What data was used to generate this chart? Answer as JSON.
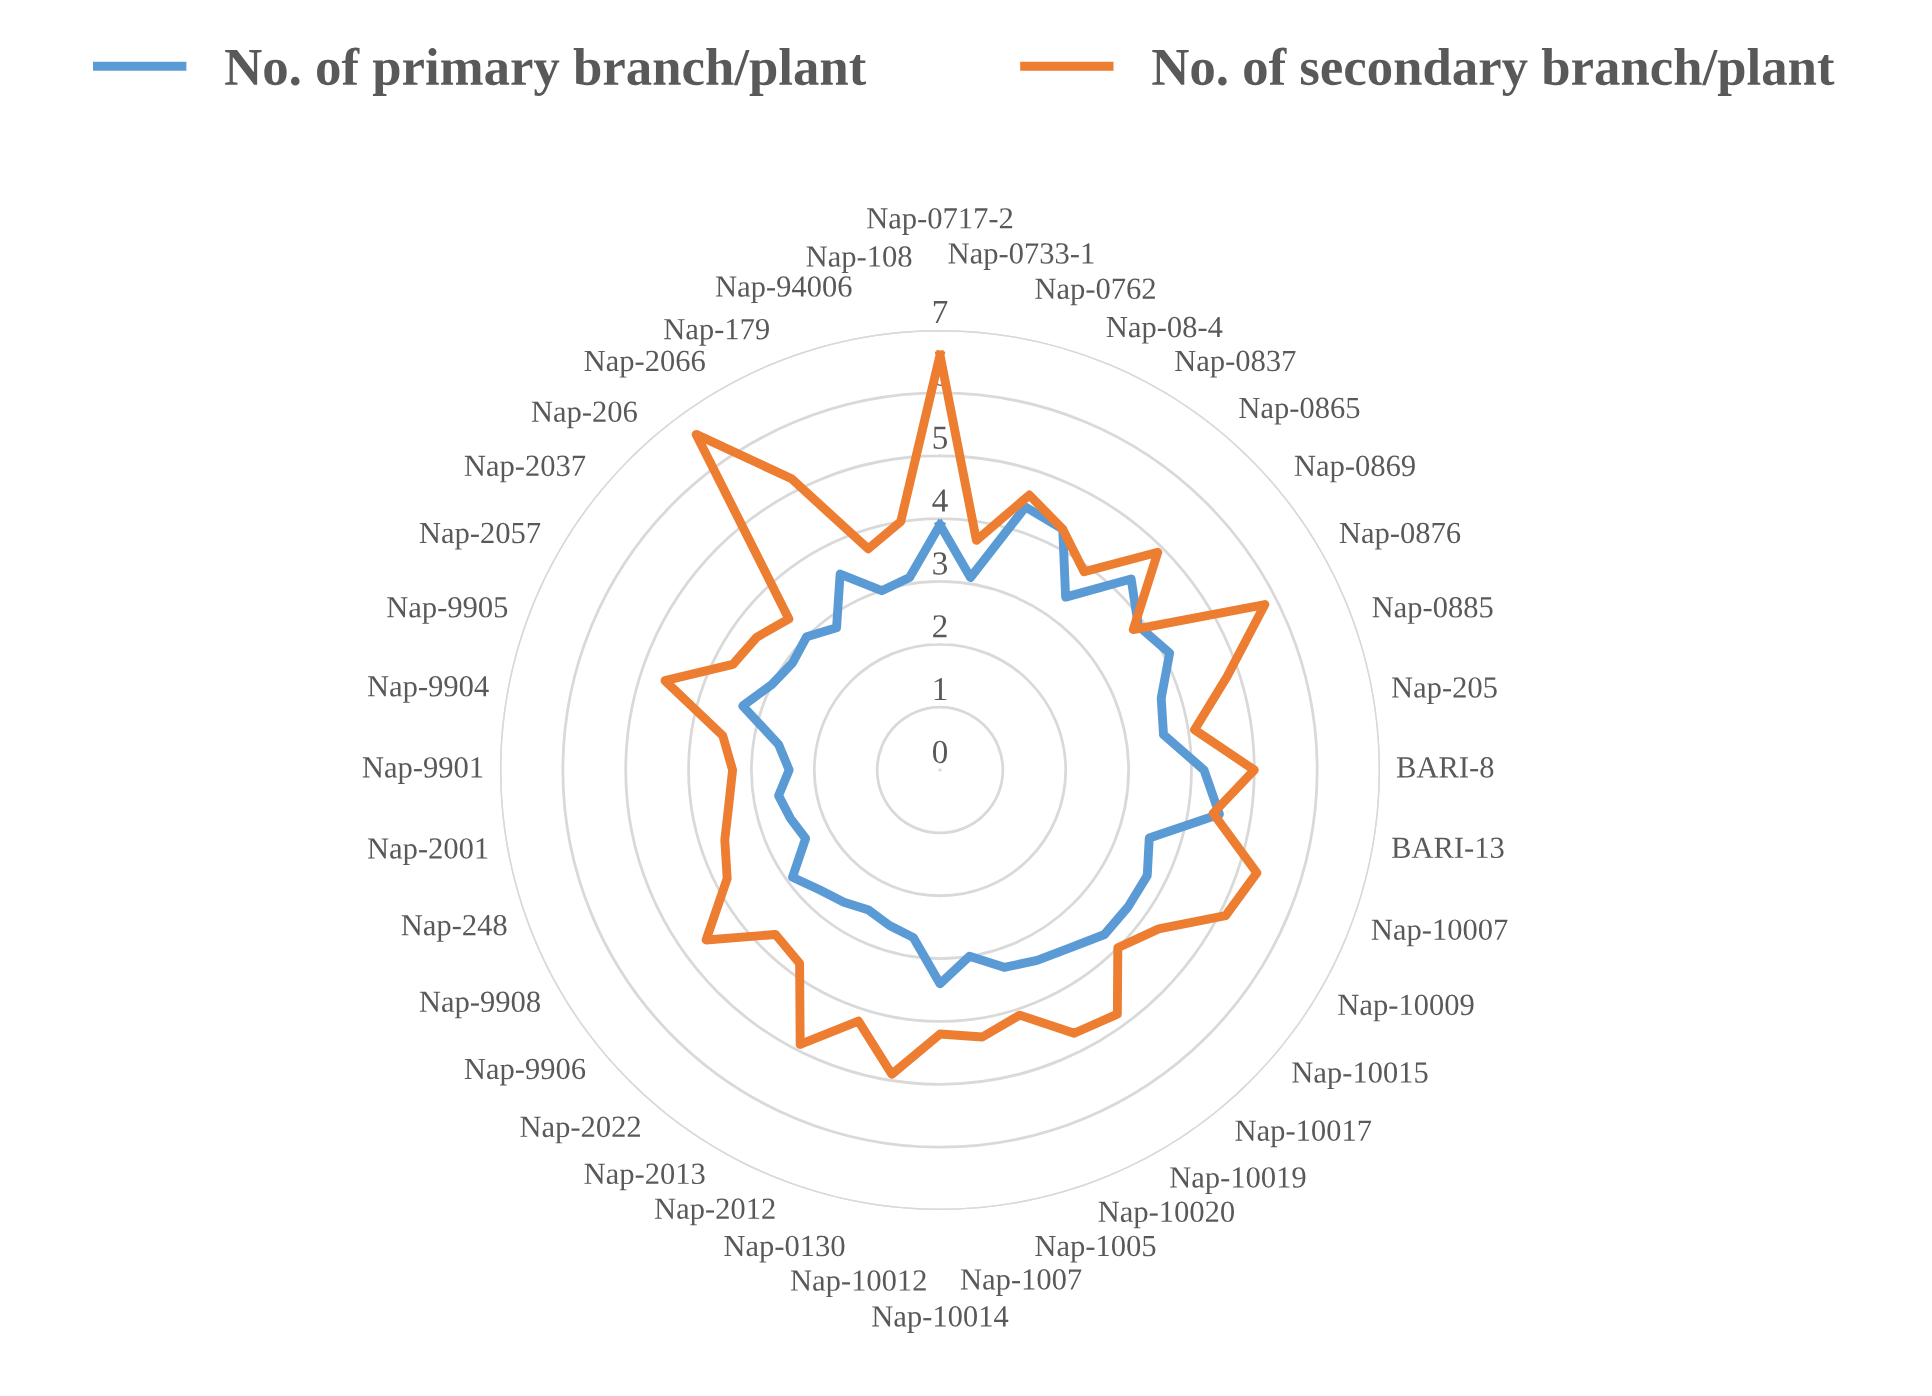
{
  "chart_data": {
    "type": "radar",
    "categories": [
      "Nap-0717-2",
      "Nap-0733-1",
      "Nap-0762",
      "Nap-08-4",
      "Nap-0837",
      "Nap-0865",
      "Nap-0869",
      "Nap-0876",
      "Nap-0885",
      "Nap-205",
      "BARI-8",
      "BARI-13",
      "Nap-10007",
      "Nap-10009",
      "Nap-10015",
      "Nap-10017",
      "Nap-10019",
      "Nap-10020",
      "Nap-1005",
      "Nap-1007",
      "Nap-10014",
      "Nap-10012",
      "Nap-0130",
      "Nap-2012",
      "Nap-2013",
      "Nap-2022",
      "Nap-9906",
      "Nap-9908",
      "Nap-248",
      "Nap-2001",
      "Nap-9901",
      "Nap-9904",
      "Nap-9905",
      "Nap-2057",
      "Nap-2037",
      "Nap-206",
      "Nap-2066",
      "Nap-179",
      "Nap-94006",
      "Nap-108"
    ],
    "series": [
      {
        "name": "No. of primary branch/plant",
        "color": "#5b9bd5",
        "values": [
          3.9,
          3.1,
          4.4,
          4.3,
          3.4,
          4.3,
          3.9,
          4.1,
          3.7,
          3.6,
          4.2,
          4.5,
          3.5,
          3.7,
          3.7,
          3.7,
          3.5,
          3.4,
          3.3,
          3.0,
          3.4,
          2.7,
          2.6,
          2.5,
          2.6,
          2.7,
          2.9,
          2.4,
          2.5,
          2.6,
          2.4,
          2.6,
          3.3,
          3.0,
          2.9,
          3.0,
          2.8,
          3.5,
          3.0,
          3.1
        ]
      },
      {
        "name": "No. of secondary branch/plant",
        "color": "#ed7d31",
        "values": [
          6.6,
          3.7,
          4.6,
          4.3,
          3.9,
          4.9,
          3.8,
          5.8,
          4.8,
          4.1,
          5.0,
          4.4,
          5.3,
          5.1,
          4.3,
          4.0,
          4.8,
          4.7,
          4.1,
          4.3,
          4.2,
          4.9,
          4.2,
          4.9,
          3.8,
          3.7,
          4.6,
          3.8,
          3.6,
          3.4,
          3.3,
          3.5,
          4.6,
          3.7,
          3.6,
          3.4,
          6.6,
          5.2,
          3.7,
          4.0
        ]
      }
    ],
    "ylim": [
      0,
      7
    ],
    "yticks": [
      0,
      1,
      2,
      3,
      4,
      5,
      6,
      7
    ],
    "grid": "y",
    "legend": "top",
    "marker": "none",
    "line_style": "solid"
  }
}
